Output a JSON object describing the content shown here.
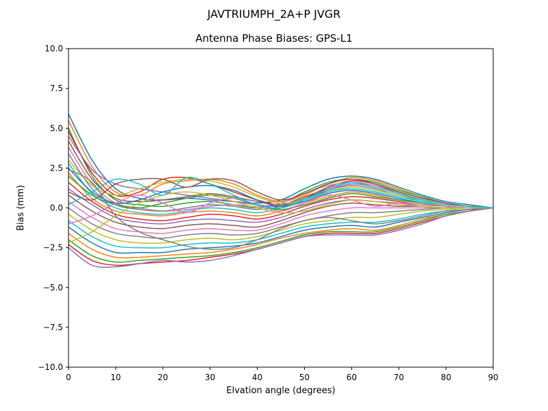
{
  "figure": {
    "background": "#ffffff",
    "axes_color": "#000000"
  },
  "chart_data": {
    "type": "line",
    "title": "JAVTRIUMPH_2A+P JVGR",
    "subtitle": "Antenna Phase Biases: GPS-L1",
    "xlabel": "Elvation angle (degrees)",
    "ylabel": "Bias (mm)",
    "xlim": [
      0,
      90
    ],
    "ylim": [
      -10,
      10
    ],
    "xticks": [
      0,
      10,
      20,
      30,
      40,
      50,
      60,
      70,
      80,
      90
    ],
    "yticks": [
      -10.0,
      -7.5,
      -5.0,
      -2.5,
      0.0,
      2.5,
      5.0,
      7.5,
      10.0
    ],
    "grid": false,
    "legend": "none",
    "palette": [
      "#1f77b4",
      "#ff7f0e",
      "#2ca02c",
      "#d62728",
      "#9467bd",
      "#8c564b",
      "#e377c2",
      "#7f7f7f",
      "#bcbd22",
      "#17becf"
    ],
    "x": [
      0,
      5,
      10,
      15,
      20,
      25,
      30,
      35,
      40,
      45,
      50,
      55,
      60,
      65,
      70,
      75,
      80,
      85,
      90
    ],
    "series": [
      {
        "values": [
          5.9,
          3.0,
          1.2,
          0.6,
          0.5,
          0.6,
          0.5,
          0.4,
          0.3,
          0.5,
          1.2,
          1.8,
          2.0,
          1.8,
          1.3,
          0.8,
          0.4,
          0.2,
          0.0
        ]
      },
      {
        "values": [
          5.5,
          2.6,
          1.0,
          0.8,
          1.5,
          1.7,
          1.8,
          1.5,
          0.8,
          0.4,
          0.8,
          1.5,
          1.9,
          1.7,
          1.2,
          0.7,
          0.3,
          0.1,
          0.0
        ]
      },
      {
        "values": [
          5.0,
          2.0,
          0.5,
          0.2,
          0.1,
          0.3,
          0.4,
          0.2,
          0.0,
          0.3,
          1.0,
          1.6,
          1.8,
          1.6,
          1.1,
          0.7,
          0.3,
          0.1,
          0.0
        ]
      },
      {
        "values": [
          4.8,
          2.2,
          0.8,
          1.0,
          1.8,
          1.9,
          1.5,
          1.0,
          0.5,
          0.2,
          0.6,
          1.3,
          1.7,
          1.5,
          1.0,
          0.6,
          0.3,
          0.1,
          0.0
        ]
      },
      {
        "values": [
          4.5,
          2.4,
          1.5,
          1.2,
          1.0,
          0.8,
          0.6,
          0.4,
          0.2,
          0.1,
          0.5,
          1.1,
          1.5,
          1.3,
          0.9,
          0.5,
          0.2,
          0.1,
          0.0
        ]
      },
      {
        "values": [
          4.2,
          1.8,
          0.6,
          0.4,
          0.5,
          0.7,
          0.9,
          0.7,
          0.4,
          0.2,
          0.7,
          1.2,
          1.6,
          1.4,
          1.0,
          0.6,
          0.3,
          0.1,
          0.0
        ]
      },
      {
        "values": [
          3.8,
          1.5,
          0.3,
          0.0,
          -0.2,
          -0.1,
          0.1,
          0.2,
          0.1,
          0.3,
          0.9,
          1.4,
          1.6,
          1.4,
          0.9,
          0.5,
          0.2,
          0.1,
          0.0
        ]
      },
      {
        "values": [
          3.4,
          1.2,
          0.2,
          -0.1,
          -0.2,
          0.0,
          0.2,
          0.1,
          -0.1,
          0.1,
          0.6,
          1.1,
          1.4,
          1.2,
          0.8,
          0.5,
          0.2,
          0.1,
          0.0
        ]
      },
      {
        "values": [
          3.0,
          1.4,
          0.8,
          1.2,
          1.6,
          1.8,
          1.7,
          1.3,
          0.7,
          0.3,
          0.5,
          1.0,
          1.3,
          1.1,
          0.8,
          0.4,
          0.2,
          0.1,
          0.0
        ]
      },
      {
        "values": [
          2.8,
          0.9,
          0.0,
          -0.3,
          -0.4,
          -0.2,
          0.0,
          -0.1,
          -0.3,
          0.0,
          0.5,
          1.0,
          1.2,
          1.0,
          0.7,
          0.4,
          0.2,
          0.1,
          0.0
        ]
      },
      {
        "values": [
          2.5,
          1.0,
          0.3,
          0.5,
          1.0,
          1.3,
          1.4,
          1.1,
          0.5,
          0.1,
          0.4,
          0.9,
          1.1,
          0.9,
          0.6,
          0.3,
          0.1,
          0.0,
          0.0
        ]
      },
      {
        "values": [
          2.2,
          0.6,
          -0.2,
          -0.4,
          -0.5,
          -0.3,
          -0.2,
          -0.3,
          -0.5,
          -0.2,
          0.3,
          0.7,
          1.0,
          0.8,
          0.5,
          0.3,
          0.1,
          0.0,
          0.0
        ]
      },
      {
        "values": [
          2.0,
          0.8,
          0.2,
          0.0,
          0.3,
          0.6,
          0.8,
          0.6,
          0.2,
          -0.1,
          0.2,
          0.6,
          0.9,
          0.7,
          0.5,
          0.3,
          0.1,
          0.0,
          0.0
        ]
      },
      {
        "values": [
          1.6,
          0.4,
          -0.4,
          -0.7,
          -0.8,
          -0.6,
          -0.4,
          -0.5,
          -0.7,
          -0.4,
          0.1,
          0.5,
          0.7,
          0.6,
          0.4,
          0.2,
          0.1,
          0.0,
          0.0
        ]
      },
      {
        "values": [
          1.2,
          0.2,
          -0.6,
          -0.9,
          -1.0,
          -0.8,
          -0.7,
          -0.8,
          -0.9,
          -0.6,
          -0.1,
          0.3,
          0.5,
          0.4,
          0.3,
          0.1,
          0.0,
          0.0,
          0.0
        ]
      },
      {
        "values": [
          0.8,
          -0.2,
          -0.9,
          -1.2,
          -1.3,
          -1.1,
          -1.0,
          -1.1,
          -1.2,
          -0.8,
          -0.3,
          0.1,
          0.3,
          0.2,
          0.1,
          0.1,
          0.0,
          0.0,
          0.0
        ]
      },
      {
        "values": [
          0.4,
          -0.6,
          -1.3,
          -1.5,
          -1.6,
          -1.4,
          -1.3,
          -1.4,
          -1.4,
          -1.0,
          -0.5,
          -0.2,
          0.0,
          0.0,
          0.0,
          0.0,
          0.0,
          0.0,
          0.0
        ]
      },
      {
        "values": [
          0.0,
          -1.0,
          -1.6,
          -1.8,
          -1.9,
          -1.7,
          -1.6,
          -1.7,
          -1.6,
          -1.2,
          -0.8,
          -0.5,
          -0.3,
          -0.3,
          -0.2,
          -0.1,
          0.0,
          0.0,
          0.0
        ]
      },
      {
        "values": [
          -0.4,
          -1.4,
          -2.0,
          -2.2,
          -2.2,
          -2.0,
          -1.9,
          -2.0,
          -1.8,
          -1.4,
          -1.0,
          -0.8,
          -0.6,
          -0.6,
          -0.4,
          -0.2,
          -0.1,
          0.0,
          0.0
        ]
      },
      {
        "values": [
          -0.8,
          -1.8,
          -2.4,
          -2.5,
          -2.5,
          -2.3,
          -2.2,
          -2.2,
          -2.0,
          -1.6,
          -1.2,
          -1.0,
          -0.9,
          -0.9,
          -0.7,
          -0.4,
          -0.2,
          -0.1,
          0.0
        ]
      },
      {
        "values": [
          -1.2,
          -2.2,
          -2.8,
          -2.8,
          -2.8,
          -2.6,
          -2.5,
          -2.4,
          -2.2,
          -1.8,
          -1.4,
          -1.2,
          -1.1,
          -1.2,
          -0.9,
          -0.6,
          -0.3,
          -0.1,
          0.0
        ]
      },
      {
        "values": [
          -1.6,
          -2.6,
          -3.1,
          -3.1,
          -3.0,
          -2.9,
          -2.8,
          -2.6,
          -2.3,
          -1.9,
          -1.6,
          -1.4,
          -1.3,
          -1.4,
          -1.1,
          -0.7,
          -0.4,
          -0.2,
          0.0
        ]
      },
      {
        "values": [
          -2.0,
          -3.0,
          -3.4,
          -3.3,
          -3.2,
          -3.1,
          -3.0,
          -2.8,
          -2.5,
          -2.1,
          -1.7,
          -1.5,
          -1.5,
          -1.5,
          -1.2,
          -0.8,
          -0.4,
          -0.2,
          0.0
        ]
      },
      {
        "values": [
          -2.3,
          -3.3,
          -3.6,
          -3.5,
          -3.4,
          -3.3,
          -3.1,
          -2.9,
          -2.6,
          -2.2,
          -1.8,
          -1.6,
          -1.6,
          -1.6,
          -1.3,
          -0.9,
          -0.5,
          -0.2,
          0.0
        ]
      },
      {
        "values": [
          -2.5,
          -3.6,
          -3.7,
          -3.5,
          -3.3,
          -3.4,
          -3.3,
          -3.0,
          -2.6,
          -2.2,
          -1.8,
          -1.7,
          -1.7,
          -1.7,
          -1.4,
          -1.0,
          -0.5,
          -0.2,
          0.0
        ]
      },
      {
        "values": [
          1.0,
          0.5,
          1.5,
          1.8,
          1.8,
          1.3,
          1.8,
          1.7,
          1.0,
          0.5,
          0.9,
          1.5,
          1.8,
          1.5,
          1.0,
          0.6,
          0.3,
          0.1,
          0.0
        ]
      },
      {
        "values": [
          -1.0,
          -0.5,
          0.3,
          0.8,
          0.3,
          -0.3,
          0.3,
          0.6,
          0.2,
          -0.2,
          0.3,
          0.8,
          0.5,
          0.1,
          0.3,
          0.2,
          0.1,
          0.0,
          0.0
        ]
      },
      {
        "values": [
          2.4,
          1.6,
          -0.5,
          -1.5,
          -2.0,
          -2.4,
          -2.6,
          -2.5,
          -2.0,
          -1.3,
          -0.8,
          -0.6,
          -0.8,
          -1.0,
          -0.8,
          -0.5,
          -0.2,
          -0.1,
          0.0
        ]
      },
      {
        "values": [
          -2.2,
          -1.5,
          -0.5,
          0.3,
          0.8,
          1.0,
          0.8,
          0.4,
          0.0,
          -0.3,
          -0.2,
          0.2,
          0.5,
          0.4,
          0.2,
          0.1,
          0.0,
          0.0,
          0.0
        ]
      },
      {
        "values": [
          0.2,
          1.0,
          1.8,
          1.5,
          0.8,
          1.9,
          1.5,
          0.8,
          0.2,
          0.0,
          0.5,
          1.2,
          1.6,
          1.3,
          0.9,
          0.5,
          0.2,
          0.1,
          0.0
        ]
      }
    ]
  }
}
